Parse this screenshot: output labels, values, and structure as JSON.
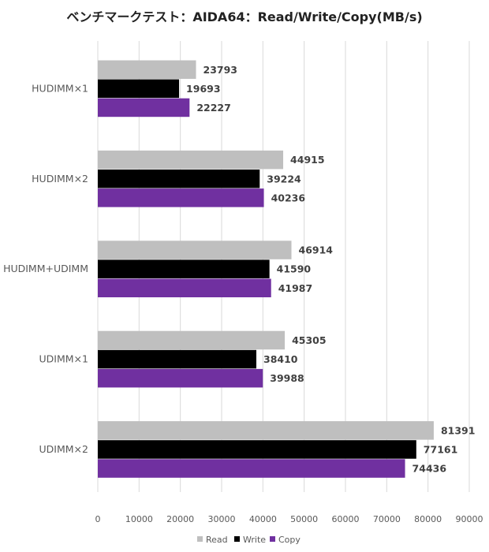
{
  "chart_data": {
    "type": "bar",
    "orientation": "horizontal",
    "title": "ベンチマークテスト：AIDA64：Read/Write/Copy(MB/s)",
    "categories": [
      "HUDIMM×1",
      "HUDIMM×2",
      "HUDIMM+UDIMM",
      "UDIMM×1",
      "UDIMM×2"
    ],
    "series": [
      {
        "name": "Read",
        "color": "#bfbfbf",
        "values": [
          23793,
          44915,
          46914,
          45305,
          81391
        ]
      },
      {
        "name": "Write",
        "color": "#000000",
        "values": [
          19693,
          39224,
          41590,
          38410,
          77161
        ]
      },
      {
        "name": "Copy",
        "color": "#7030a0",
        "values": [
          22227,
          40236,
          41987,
          39988,
          74436
        ]
      }
    ],
    "xlim": [
      0,
      90000
    ],
    "xticks": [
      0,
      10000,
      20000,
      30000,
      40000,
      50000,
      60000,
      70000,
      80000,
      90000
    ],
    "grid": true,
    "legend_position": "bottom",
    "xlabel": "",
    "ylabel": ""
  }
}
